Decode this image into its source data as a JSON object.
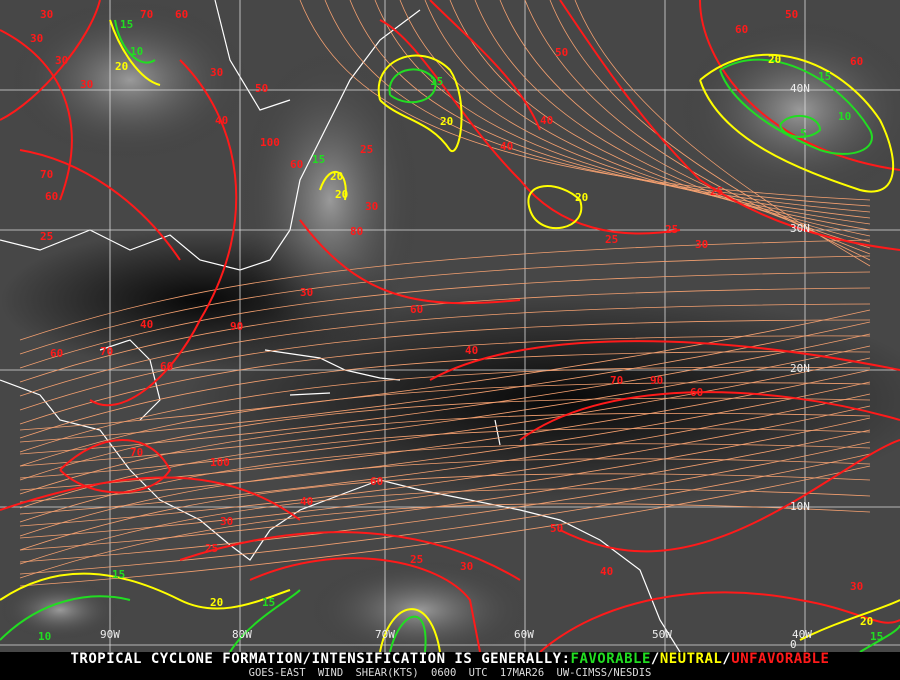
{
  "map": {
    "longitude_labels": [
      "90W",
      "80W",
      "70W",
      "60W",
      "50W",
      "40W"
    ],
    "latitude_labels": [
      "40N",
      "30N",
      "20N",
      "10N",
      "0"
    ],
    "contour_labels": {
      "unfavorable": [
        "30",
        "30",
        "30",
        "30",
        "70",
        "60",
        "30",
        "50",
        "70",
        "60",
        "40",
        "100",
        "25",
        "30",
        "25",
        "30",
        "60",
        "40",
        "70",
        "90",
        "60",
        "70",
        "100",
        "40",
        "60",
        "70",
        "60",
        "90",
        "60",
        "40",
        "40",
        "80",
        "50",
        "60",
        "50",
        "60",
        "25",
        "25",
        "25",
        "30",
        "40",
        "30",
        "25",
        "30",
        "25",
        "60",
        "40",
        "50",
        "30"
      ],
      "neutral": [
        "20",
        "20",
        "20",
        "20",
        "20",
        "20",
        "20",
        "20"
      ],
      "favorable": [
        "15",
        "10",
        "15",
        "15",
        "5",
        "10",
        "15",
        "15",
        "10",
        "15",
        "15"
      ]
    },
    "colors": {
      "favorable": "#22dd22",
      "neutral": "#ffff00",
      "unfavorable": "#ff1a1a",
      "streamline": "#f4a070",
      "grid": "#ffffff",
      "coast": "#ffffff"
    }
  },
  "caption": {
    "prefix": "TROPICAL CYCLONE FORMATION/INTENSIFICATION IS GENERALLY:",
    "favorable": "FAVORABLE",
    "sep1": "/",
    "neutral": "NEUTRAL",
    "sep2": "/",
    "unfavorable": "UNFAVORABLE",
    "product": "GOES-EAST WIND SHEAR(KTS)",
    "time": "0600 UTC",
    "date": "17MAR26",
    "source": "UW-CIMSS/NESDIS"
  }
}
